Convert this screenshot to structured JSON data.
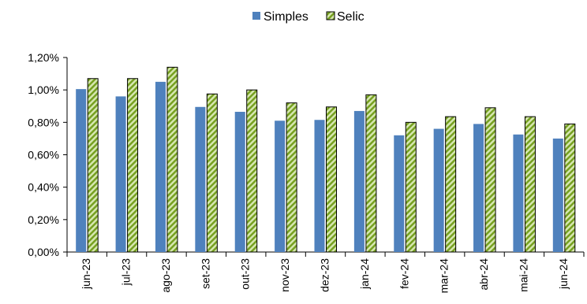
{
  "chart_data": {
    "type": "bar",
    "categories": [
      "jun-23",
      "jul-23",
      "ago-23",
      "set-23",
      "out-23",
      "nov-23",
      "dez-23",
      "jan-24",
      "fev-24",
      "mar-24",
      "abr-24",
      "mai-24",
      "jun-24"
    ],
    "series": [
      {
        "name": "Simples",
        "values": [
          1.005,
          0.96,
          1.05,
          0.895,
          0.865,
          0.81,
          0.815,
          0.87,
          0.72,
          0.76,
          0.79,
          0.725,
          0.7
        ],
        "color": "#4f81bd",
        "pattern": "solid"
      },
      {
        "name": "Selic",
        "values": [
          1.07,
          1.07,
          1.14,
          0.975,
          1.0,
          0.92,
          0.895,
          0.97,
          0.8,
          0.835,
          0.89,
          0.835,
          0.79
        ],
        "color": "#9bbb59",
        "pattern": "diagonal-stripes"
      }
    ],
    "title": "",
    "xlabel": "",
    "ylabel": "",
    "ylim": [
      0,
      1.2
    ],
    "yticks": [
      "0,00%",
      "0,20%",
      "0,40%",
      "0,60%",
      "0,80%",
      "1,00%",
      "1,20%"
    ],
    "grid": false,
    "legend": "top-center"
  }
}
